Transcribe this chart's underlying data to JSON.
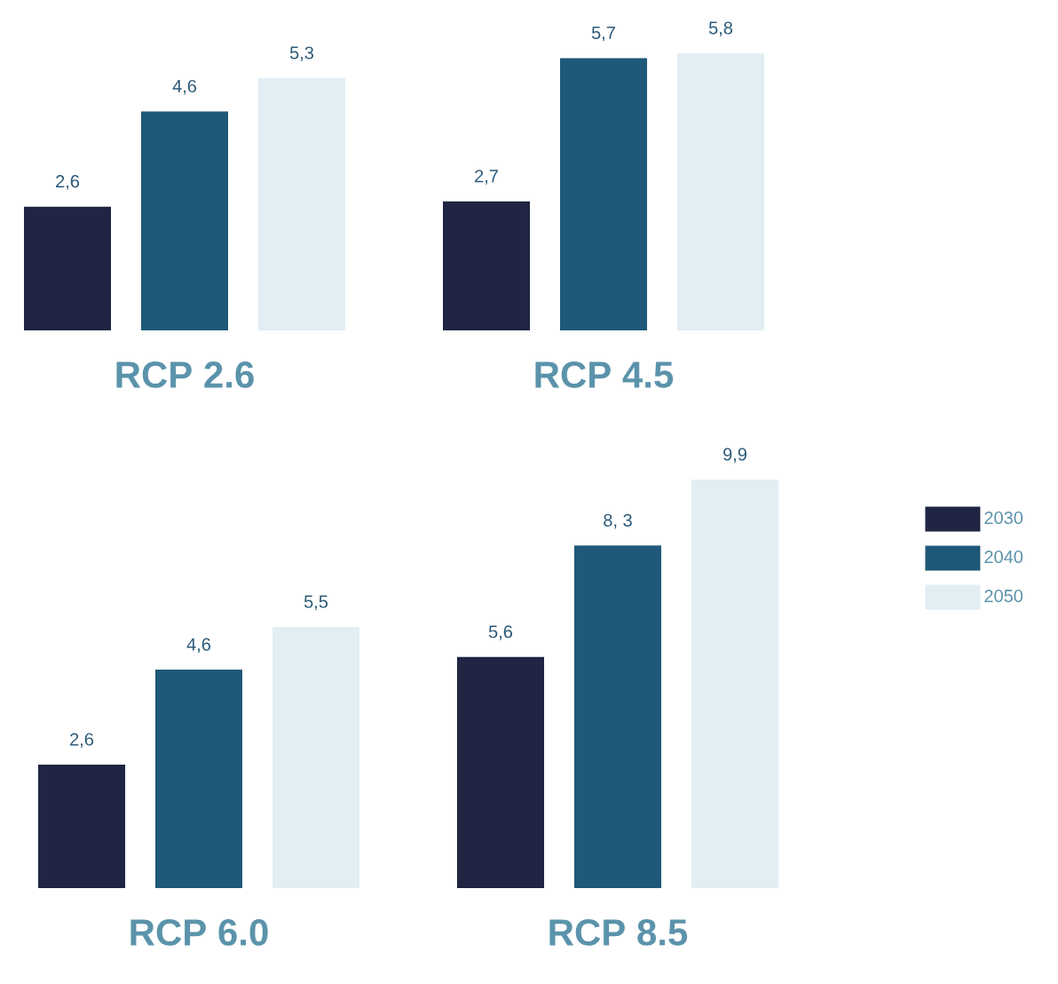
{
  "chart_data": [
    {
      "type": "bar",
      "title": "RCP 2.6",
      "categories": [
        null
      ],
      "series": [
        {
          "color": "#1f2542",
          "values": [
            2.6
          ],
          "value_labels": [
            "2,6"
          ]
        },
        {
          "color": "#1f5878",
          "values": [
            4.6
          ],
          "value_labels": [
            "4,6"
          ]
        },
        {
          "color": "#e2eef4",
          "values": [
            5.3
          ],
          "value_labels": [
            "5,3"
          ]
        }
      ]
    },
    {
      "type": "bar",
      "title": "RCP 4.5",
      "categories": [
        null
      ],
      "series": [
        {
          "color": "#1f2542",
          "values": [
            2.7
          ],
          "value_labels": [
            "2,7"
          ]
        },
        {
          "color": "#1f5878",
          "values": [
            5.7
          ],
          "value_labels": [
            "5,7"
          ]
        },
        {
          "color": "#e2eef4",
          "values": [
            5.8
          ],
          "value_labels": [
            "5,8"
          ]
        }
      ]
    },
    {
      "type": "bar",
      "title": "RCP 6.0",
      "categories": [
        null
      ],
      "series": [
        {
          "color": "#1f2542",
          "values": [
            2.6
          ],
          "value_labels": [
            "2,6"
          ]
        },
        {
          "color": "#1f5878",
          "values": [
            4.6
          ],
          "value_labels": [
            "4,6"
          ]
        },
        {
          "color": "#e2eef4",
          "values": [
            5.5
          ],
          "value_labels": [
            "5,5"
          ]
        }
      ]
    },
    {
      "type": "bar",
      "title": "RCP 8.5",
      "categories": [
        null
      ],
      "legend": "right",
      "series": [
        {
          "name": "2030",
          "color": "#1f2542",
          "values": [
            5.6
          ],
          "value_labels": [
            "5,6"
          ]
        },
        {
          "name": "2040",
          "color": "#1f5878",
          "values": [
            8.3
          ],
          "value_labels": [
            "8, 3"
          ]
        },
        {
          "name": "2050",
          "color": "#e2eef4",
          "values": [
            9.9
          ],
          "value_labels": [
            "9,9"
          ]
        }
      ]
    }
  ]
}
